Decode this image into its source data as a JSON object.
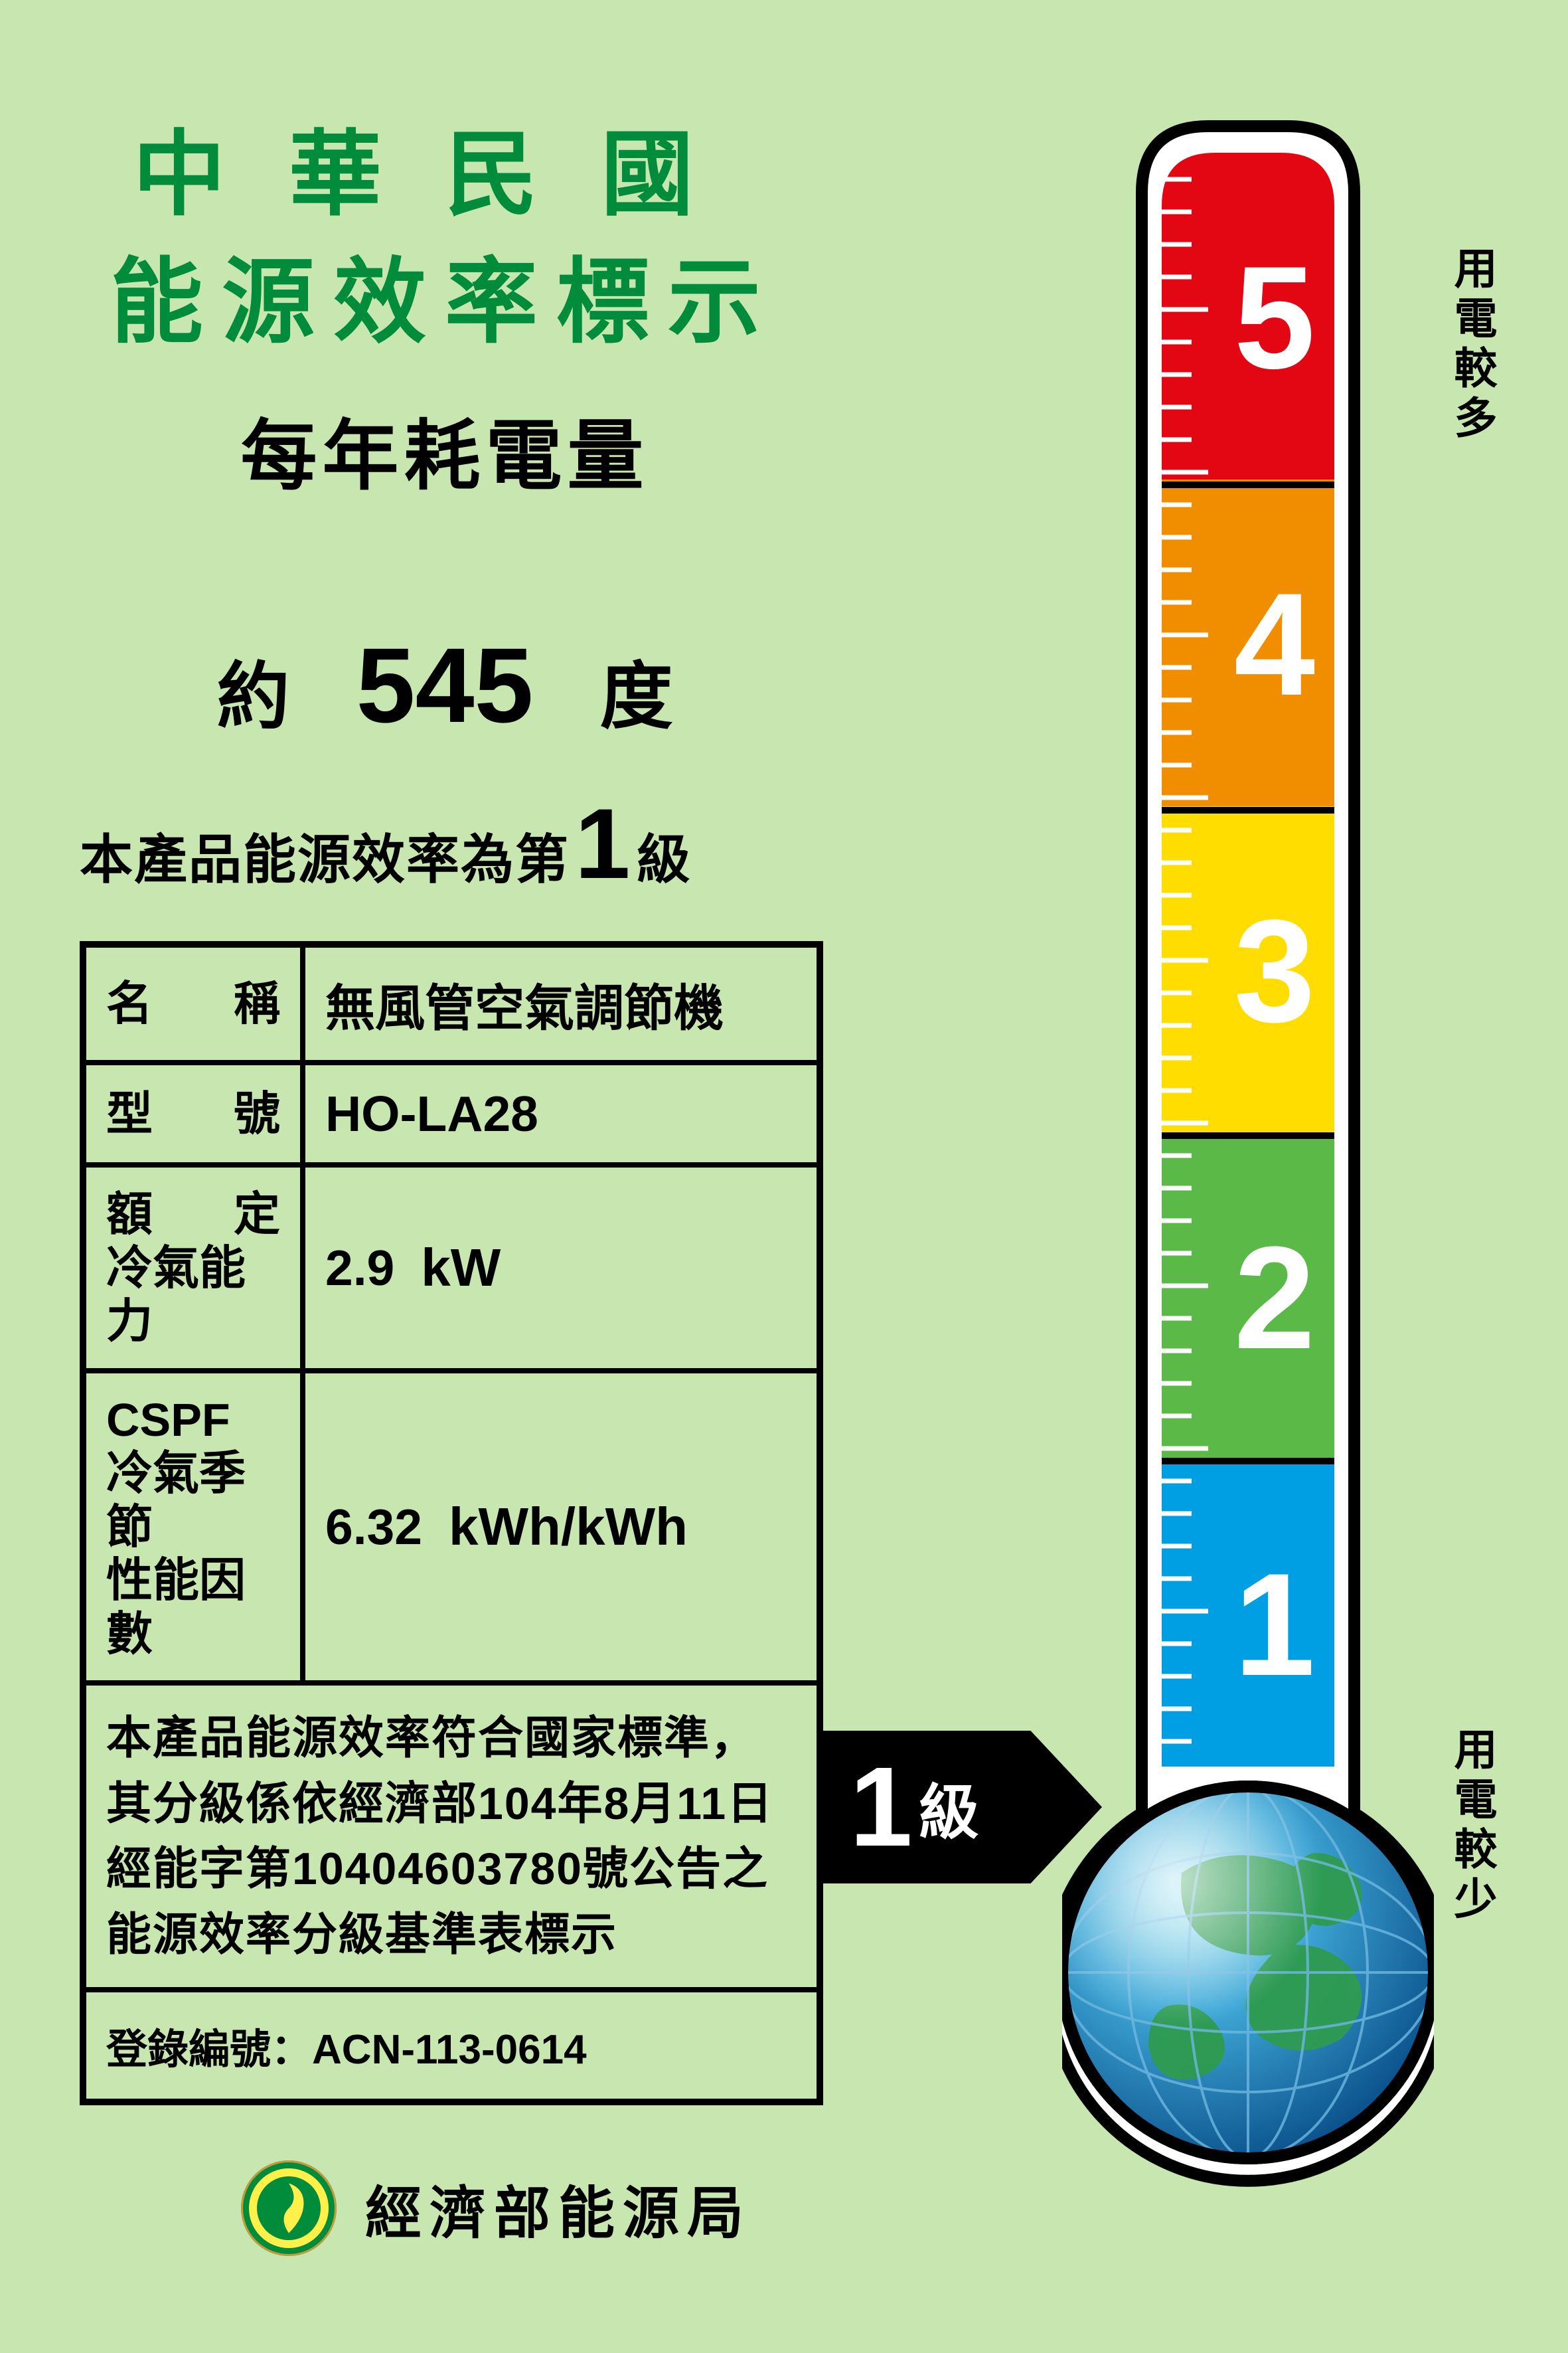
{
  "header": {
    "line1": "中華民國",
    "line2": "能源效率標示",
    "subtitle": "每年耗電量"
  },
  "consumption": {
    "approx": "約",
    "value": "545",
    "unit": "度"
  },
  "grade_statement": {
    "prefix": "本產品能源效率為第",
    "grade": "1",
    "suffix": "級"
  },
  "spec": {
    "rows": [
      {
        "label": "名　稱",
        "value_text": "無風管空氣調節機"
      },
      {
        "label": "型　號",
        "value_text": "HO-LA28"
      },
      {
        "label_lines": [
          "額　定",
          "冷氣能力"
        ],
        "num": "2.9",
        "unit": "kW"
      },
      {
        "label_lines": [
          "CSPF",
          "冷氣季節",
          "性能因數"
        ],
        "num": "6.32",
        "unit": "kWh/kWh"
      }
    ],
    "note": "本產品能源效率符合國家標準，其分級係依經濟部104年8月11日經能字第10404603780號公告之能源效率分級基準表標示",
    "reg_label": "登錄編號：",
    "reg_num": "ACN-113-0614"
  },
  "arrow": {
    "grade": "1",
    "ji": "級"
  },
  "footer": {
    "bureau": "經濟部能源局"
  },
  "thermometer": {
    "side_top": "用電較多",
    "side_bot": "用電較少",
    "levels": [
      {
        "n": "5",
        "color": "#e30613"
      },
      {
        "n": "4",
        "color": "#f18e00"
      },
      {
        "n": "3",
        "color": "#ffdd00"
      },
      {
        "n": "2",
        "color": "#5bba47"
      },
      {
        "n": "1",
        "color": "#009fe3"
      }
    ],
    "stroke": "#000000",
    "tick_color": "#ffffff",
    "num_color": "#ffffff",
    "bulb_colors": {
      "ocean": "#0a5f9e",
      "land": "#2e9b4f",
      "highlight": "#8fd9a8",
      "grid": "#6db8e0"
    }
  },
  "colors": {
    "bg": "#c8e6b0",
    "title": "#008c3a",
    "text": "#000000"
  }
}
